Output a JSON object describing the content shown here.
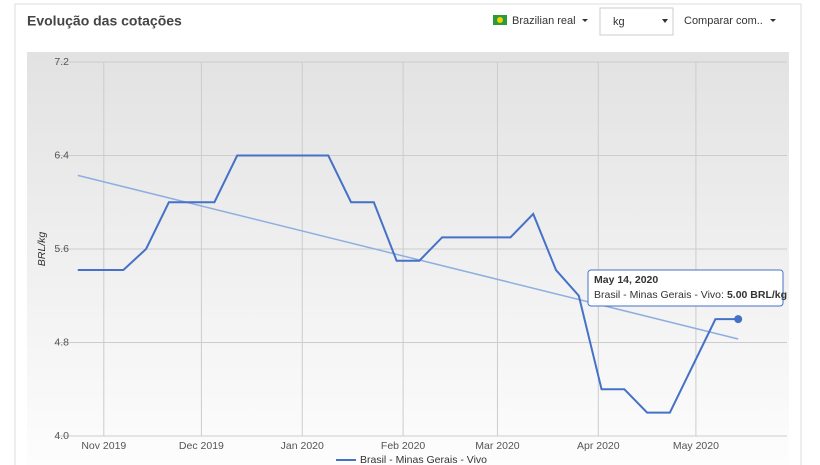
{
  "header": {
    "title": "Evolução das cotações",
    "currency": "Brazilian real",
    "unit": "kg",
    "compare": "Comparar com.."
  },
  "chart_data": {
    "type": "line",
    "ylabel": "BRL/kg",
    "x": [
      "2019-10-24",
      "2019-10-31",
      "2019-11-07",
      "2019-11-14",
      "2019-11-21",
      "2019-11-28",
      "2019-12-05",
      "2019-12-12",
      "2019-12-19",
      "2019-12-26",
      "2020-01-02",
      "2020-01-09",
      "2020-01-16",
      "2020-01-23",
      "2020-01-30",
      "2020-02-06",
      "2020-02-13",
      "2020-02-20",
      "2020-02-27",
      "2020-03-05",
      "2020-03-12",
      "2020-03-19",
      "2020-03-26",
      "2020-04-02",
      "2020-04-09",
      "2020-04-16",
      "2020-04-23",
      "2020-04-30",
      "2020-05-07",
      "2020-05-14"
    ],
    "series": [
      {
        "name": "Brasil - Minas Gerais - Vivo",
        "color": "#4572c8",
        "values": [
          5.42,
          5.42,
          5.42,
          5.6,
          6.0,
          6.0,
          6.0,
          6.4,
          6.4,
          6.4,
          6.4,
          6.4,
          6.0,
          6.0,
          5.5,
          5.5,
          5.7,
          5.7,
          5.7,
          5.7,
          5.9,
          5.42,
          5.2,
          4.4,
          4.4,
          4.2,
          4.2,
          4.6,
          5.0,
          5.0
        ]
      }
    ],
    "trendline": {
      "x": [
        "2019-10-24",
        "2020-05-14"
      ],
      "values": [
        6.23,
        4.83
      ],
      "color": "#8eaee0"
    },
    "xlim": [
      "2019-10-17",
      "2020-05-29"
    ],
    "xticks": [
      {
        "value": "2019-11-01",
        "label": "Nov 2019"
      },
      {
        "value": "2019-12-01",
        "label": "Dec 2019"
      },
      {
        "value": "2020-01-01",
        "label": "Jan 2020"
      },
      {
        "value": "2020-02-01",
        "label": "Feb 2020"
      },
      {
        "value": "2020-03-01",
        "label": "Mar 2020"
      },
      {
        "value": "2020-04-01",
        "label": "Apr 2020"
      },
      {
        "value": "2020-05-01",
        "label": "May 2020"
      }
    ],
    "ylim": [
      4.0,
      7.2
    ],
    "yticks": [
      {
        "value": 4.0,
        "label": "4.0"
      },
      4.8,
      5.6,
      6.4,
      7.2
    ],
    "grid": true,
    "tooltip": {
      "date": "May 14, 2020",
      "label": "Brasil - Minas Gerais - Vivo:",
      "value": "5.00 BRL/kg",
      "index": 29
    }
  }
}
